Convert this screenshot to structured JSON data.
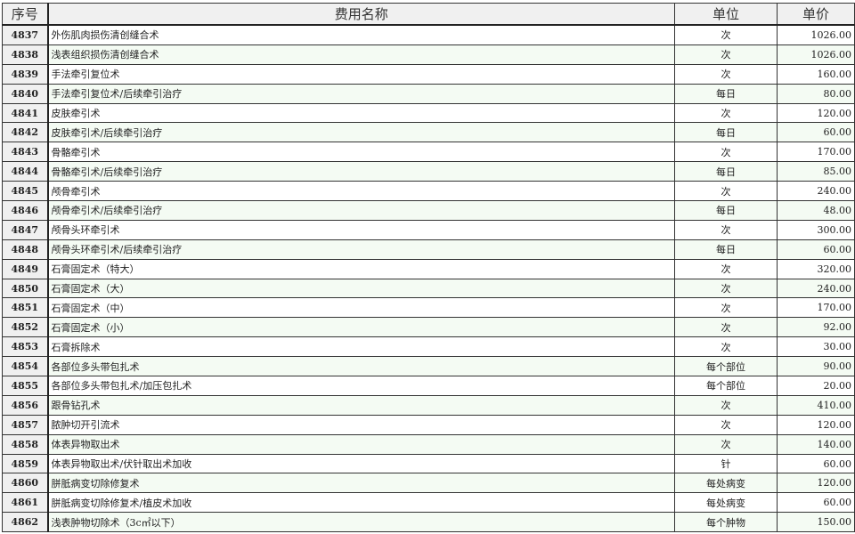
{
  "headers": {
    "id": "序号",
    "name": "费用名称",
    "unit": "单位",
    "price": "单价"
  },
  "rows": [
    {
      "id": "4837",
      "name": "外伤肌肉损伤清创缝合术",
      "unit": "次",
      "price": "1026.00"
    },
    {
      "id": "4838",
      "name": "浅表组织损伤清创缝合术",
      "unit": "次",
      "price": "1026.00"
    },
    {
      "id": "4839",
      "name": "手法牵引复位术",
      "unit": "次",
      "price": "160.00"
    },
    {
      "id": "4840",
      "name": "手法牵引复位术/后续牵引治疗",
      "unit": "每日",
      "price": "80.00"
    },
    {
      "id": "4841",
      "name": "皮肤牵引术",
      "unit": "次",
      "price": "120.00"
    },
    {
      "id": "4842",
      "name": "皮肤牵引术/后续牵引治疗",
      "unit": "每日",
      "price": "60.00"
    },
    {
      "id": "4843",
      "name": "骨骼牵引术",
      "unit": "次",
      "price": "170.00"
    },
    {
      "id": "4844",
      "name": "骨骼牵引术/后续牵引治疗",
      "unit": "每日",
      "price": "85.00"
    },
    {
      "id": "4845",
      "name": "颅骨牵引术",
      "unit": "次",
      "price": "240.00"
    },
    {
      "id": "4846",
      "name": "颅骨牵引术/后续牵引治疗",
      "unit": "每日",
      "price": "48.00"
    },
    {
      "id": "4847",
      "name": "颅骨头环牵引术",
      "unit": "次",
      "price": "300.00"
    },
    {
      "id": "4848",
      "name": "颅骨头环牵引术/后续牵引治疗",
      "unit": "每日",
      "price": "60.00"
    },
    {
      "id": "4849",
      "name": "石膏固定术（特大）",
      "unit": "次",
      "price": "320.00"
    },
    {
      "id": "4850",
      "name": "石膏固定术（大）",
      "unit": "次",
      "price": "240.00"
    },
    {
      "id": "4851",
      "name": "石膏固定术（中）",
      "unit": "次",
      "price": "170.00"
    },
    {
      "id": "4852",
      "name": "石膏固定术（小）",
      "unit": "次",
      "price": "92.00"
    },
    {
      "id": "4853",
      "name": "石膏拆除术",
      "unit": "次",
      "price": "30.00"
    },
    {
      "id": "4854",
      "name": "各部位多头带包扎术",
      "unit": "每个部位",
      "price": "90.00"
    },
    {
      "id": "4855",
      "name": "各部位多头带包扎术/加压包扎术",
      "unit": "每个部位",
      "price": "20.00"
    },
    {
      "id": "4856",
      "name": "跟骨钻孔术",
      "unit": "次",
      "price": "410.00"
    },
    {
      "id": "4857",
      "name": "脓肿切开引流术",
      "unit": "次",
      "price": "120.00"
    },
    {
      "id": "4858",
      "name": "体表异物取出术",
      "unit": "次",
      "price": "140.00"
    },
    {
      "id": "4859",
      "name": "体表异物取出术/伏针取出术加收",
      "unit": "针",
      "price": "60.00"
    },
    {
      "id": "4860",
      "name": "胼胝病变切除修复术",
      "unit": "每处病变",
      "price": "120.00"
    },
    {
      "id": "4861",
      "name": "胼胝病变切除修复术/植皮术加收",
      "unit": "每处病变",
      "price": "60.00"
    },
    {
      "id": "4862",
      "name": "浅表肿物切除术（3c㎡以下）",
      "unit": "每个肿物",
      "price": "150.00"
    }
  ]
}
